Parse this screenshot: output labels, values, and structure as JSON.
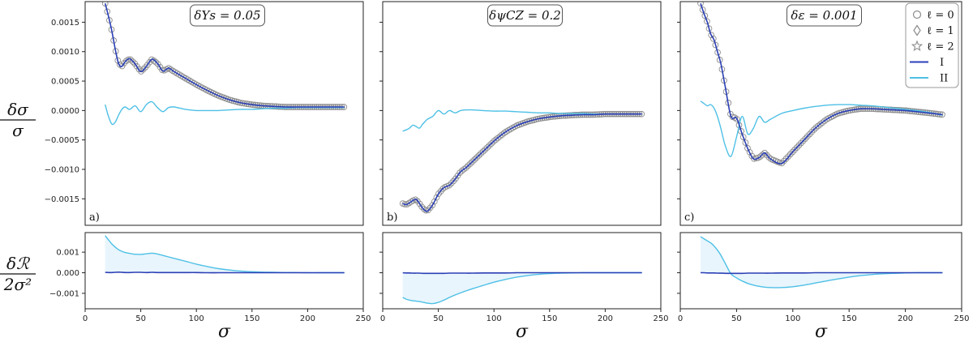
{
  "chart_data": {
    "type": "line",
    "x_label": "σ",
    "y_label_top": {
      "num": "δσ",
      "den": "σ"
    },
    "y_label_bottom": {
      "num": "δℛ",
      "den": "2σ²"
    },
    "x_range": [
      0,
      250
    ],
    "x_ticks": [
      "0",
      "50",
      "100",
      "150",
      "200",
      "250"
    ],
    "top_y_range": [
      -0.00195,
      0.00185
    ],
    "top_y_ticks": [
      {
        "v": 0.0015,
        "label": "0.0015"
      },
      {
        "v": 0.001,
        "label": "0.0010"
      },
      {
        "v": 0.0005,
        "label": "0.0005"
      },
      {
        "v": 0.0,
        "label": "0.0000"
      },
      {
        "v": -0.0005,
        "label": "−0.0005"
      },
      {
        "v": -0.001,
        "label": "−0.0010"
      },
      {
        "v": -0.0015,
        "label": "−0.0015"
      }
    ],
    "bottom_y_range": [
      -0.00175,
      0.00195
    ],
    "bottom_y_ticks": [
      {
        "v": 0.001,
        "label": "0.001"
      },
      {
        "v": 0.0,
        "label": "0.000"
      },
      {
        "v": -0.001,
        "label": "−0.001"
      }
    ],
    "colors": {
      "I": "#2b3fb5",
      "II": "#4ec0e6",
      "markers": "#8c8c8c",
      "fill": "#e2f3fb"
    },
    "legend": {
      "entries": [
        {
          "marker": "circle",
          "label": "ℓ = 0"
        },
        {
          "marker": "diamond",
          "label": "ℓ = 1"
        },
        {
          "marker": "star",
          "label": "ℓ = 2"
        },
        {
          "line": "I",
          "label": "I"
        },
        {
          "line": "II",
          "label": "II"
        }
      ]
    },
    "panels": [
      {
        "letter": "a)",
        "annotation": "δYs = 0.05",
        "x": [
          18,
          21,
          24,
          27,
          30,
          33,
          36,
          40,
          45,
          50,
          55,
          60,
          65,
          70,
          75,
          80,
          90,
          100,
          110,
          120,
          130,
          140,
          150,
          160,
          170,
          180,
          190,
          200,
          210,
          220,
          233
        ],
        "I": [
          0.00182,
          0.0016,
          0.00135,
          0.00105,
          0.0008,
          0.00075,
          0.00083,
          0.00088,
          0.00079,
          0.00066,
          0.00075,
          0.00087,
          0.0008,
          0.00067,
          0.00072,
          0.00066,
          0.00055,
          0.00044,
          0.00034,
          0.00025,
          0.00018,
          0.00013,
          0.0001,
          8e-05,
          7e-05,
          6e-05,
          6e-05,
          6e-05,
          6e-05,
          6e-05,
          6e-05
        ],
        "II": [
          0.0001,
          -0.0001,
          -0.00023,
          -0.0002,
          -8e-05,
          2e-05,
          6e-05,
          2e-05,
          8e-05,
          -2e-05,
          0.0001,
          0.00015,
          5e-05,
          -2e-05,
          5e-05,
          6e-05,
          2e-05,
          0.0,
          0.0,
          0.0,
          1e-05,
          2e-05,
          2e-05,
          3e-05,
          4e-05,
          4e-05,
          5e-05,
          5e-05,
          5e-05,
          5e-05,
          5e-05
        ],
        "residual_I": [
          2e-05,
          1e-05,
          1e-05,
          2e-05,
          3e-05,
          2e-05,
          1e-05,
          1e-05,
          2e-05,
          2e-05,
          1e-05,
          2e-05,
          1e-05,
          1e-05,
          1e-05,
          1e-05,
          1e-05,
          1e-05,
          0.0,
          0.0,
          0.0,
          0.0,
          0.0,
          0.0,
          0.0,
          0.0,
          0.0,
          0.0,
          0.0,
          0.0,
          0.0
        ],
        "residual_II": [
          0.0018,
          0.0016,
          0.0014,
          0.00125,
          0.00112,
          0.00104,
          0.00098,
          0.00094,
          0.0009,
          0.00089,
          0.00092,
          0.00095,
          0.00091,
          0.00084,
          0.00077,
          0.0007,
          0.00056,
          0.00042,
          0.0003,
          0.0002,
          0.00013,
          8e-05,
          5e-05,
          3e-05,
          2e-05,
          1e-05,
          1e-05,
          0.0,
          0.0,
          0.0,
          0.0
        ]
      },
      {
        "letter": "b)",
        "annotation": "δψCZ = 0.2",
        "x": [
          18,
          21,
          24,
          27,
          30,
          33,
          36,
          40,
          45,
          50,
          55,
          60,
          65,
          70,
          75,
          80,
          90,
          100,
          110,
          120,
          130,
          140,
          150,
          160,
          170,
          180,
          190,
          200,
          210,
          220,
          233
        ],
        "I": [
          -0.00158,
          -0.0016,
          -0.00157,
          -0.00153,
          -0.00151,
          -0.00158,
          -0.00166,
          -0.00171,
          -0.0016,
          -0.00142,
          -0.00131,
          -0.00127,
          -0.00117,
          -0.00104,
          -0.00097,
          -0.00088,
          -0.0007,
          -0.00052,
          -0.00037,
          -0.00026,
          -0.00019,
          -0.00014,
          -0.00011,
          -9e-05,
          -8e-05,
          -7e-05,
          -7e-05,
          -6e-05,
          -6e-05,
          -6e-05,
          -6e-05
        ],
        "II": [
          -0.00035,
          -0.00033,
          -0.0003,
          -0.00025,
          -0.00027,
          -0.0003,
          -0.00023,
          -0.00015,
          -0.0001,
          0.0,
          -6e-05,
          0.0,
          -4e-05,
          0.0,
          1e-05,
          1e-05,
          0.0,
          -1e-05,
          -1e-05,
          -2e-05,
          -3e-05,
          -4e-05,
          -4e-05,
          -5e-05,
          -5e-05,
          -5e-05,
          -6e-05,
          -6e-05,
          -6e-05,
          -6e-05,
          -6e-05
        ],
        "residual_I": [
          0.0,
          -1e-05,
          -1e-05,
          -2e-05,
          -2e-05,
          -2e-05,
          -3e-05,
          -3e-05,
          -3e-05,
          -3e-05,
          -3e-05,
          -2e-05,
          -2e-05,
          -2e-05,
          -2e-05,
          -2e-05,
          -1e-05,
          -1e-05,
          -1e-05,
          0.0,
          0.0,
          0.0,
          0.0,
          0.0,
          0.0,
          0.0,
          0.0,
          0.0,
          0.0,
          0.0,
          0.0
        ],
        "residual_II": [
          -0.0012,
          -0.00128,
          -0.00133,
          -0.00136,
          -0.00138,
          -0.0014,
          -0.00143,
          -0.00148,
          -0.0015,
          -0.00144,
          -0.00133,
          -0.0012,
          -0.00108,
          -0.00098,
          -0.00088,
          -0.00079,
          -0.00062,
          -0.00046,
          -0.00033,
          -0.00022,
          -0.00014,
          -8e-05,
          -4e-05,
          -2e-05,
          -1e-05,
          0.0,
          0.0,
          0.0,
          0.0,
          0.0,
          0.0
        ]
      },
      {
        "letter": "c)",
        "annotation": "δε = 0.001",
        "x": [
          18,
          21,
          24,
          27,
          30,
          33,
          36,
          40,
          45,
          50,
          55,
          60,
          65,
          70,
          75,
          80,
          90,
          100,
          110,
          120,
          130,
          140,
          150,
          160,
          170,
          180,
          190,
          200,
          210,
          220,
          233
        ],
        "I": [
          0.00182,
          0.00165,
          0.0015,
          0.0013,
          0.0012,
          0.001,
          0.0008,
          0.0004,
          -0.0001,
          -0.00013,
          -0.0004,
          -0.00065,
          -0.00082,
          -0.0008,
          -0.00072,
          -0.00082,
          -0.0009,
          -0.0007,
          -0.0005,
          -0.0003,
          -0.00015,
          -5e-05,
          0.0,
          3e-05,
          3e-05,
          2e-05,
          1e-05,
          0.0,
          -2e-05,
          -4e-05,
          -7e-05
        ],
        "II": [
          0.00016,
          0.00012,
          8e-05,
          0.0001,
          4e-05,
          -0.0001,
          -0.0003,
          -0.0006,
          -0.00078,
          -0.00045,
          -0.0001,
          -0.0004,
          -0.0003,
          -0.0001,
          -0.0002,
          -0.00015,
          -5e-05,
          0.0,
          4e-05,
          7e-05,
          9e-05,
          0.0001,
          0.0001,
          9e-05,
          8e-05,
          6e-05,
          4e-05,
          2e-05,
          0.0,
          -3e-05,
          -8e-05
        ],
        "residual_I": [
          0.0,
          0.0,
          -1e-05,
          -1e-05,
          -1e-05,
          -2e-05,
          -2e-05,
          -3e-05,
          -3e-05,
          -3e-05,
          -3e-05,
          -2e-05,
          -2e-05,
          -2e-05,
          -2e-05,
          -2e-05,
          -1e-05,
          -1e-05,
          -1e-05,
          0.0,
          0.0,
          0.0,
          0.0,
          0.0,
          0.0,
          0.0,
          0.0,
          0.0,
          0.0,
          0.0,
          0.0
        ],
        "residual_II": [
          0.00175,
          0.00165,
          0.00155,
          0.00145,
          0.0013,
          0.0011,
          0.00085,
          0.00045,
          -5e-05,
          -0.00025,
          -0.0004,
          -0.00052,
          -0.0006,
          -0.00066,
          -0.0007,
          -0.00072,
          -0.00072,
          -0.00068,
          -0.0006,
          -0.0005,
          -0.0004,
          -0.0003,
          -0.00021,
          -0.00014,
          -9e-05,
          -5e-05,
          -3e-05,
          -1e-05,
          0.0,
          0.0,
          0.0
        ]
      }
    ]
  }
}
